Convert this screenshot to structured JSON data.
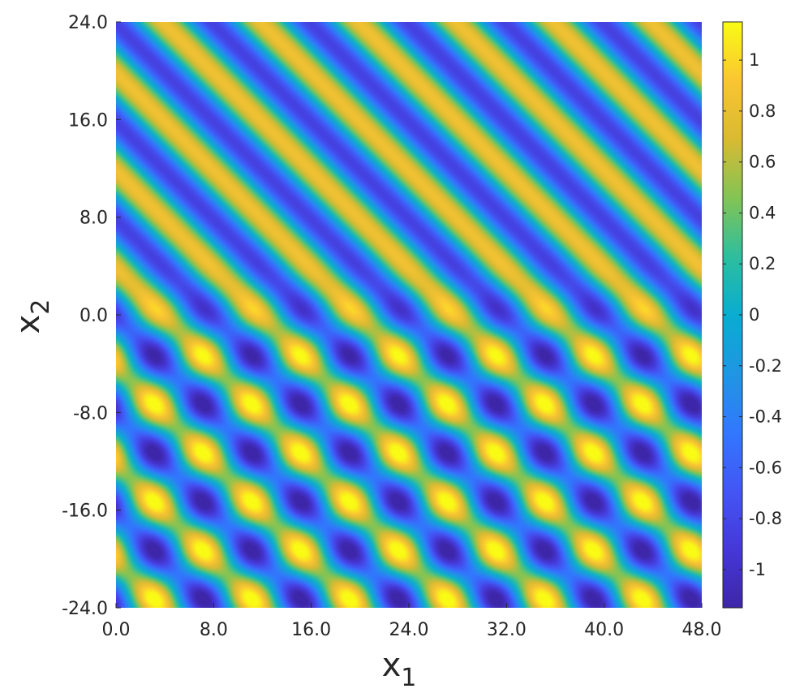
{
  "chart_data": {
    "type": "heatmap",
    "title": "",
    "xlabel": "x",
    "xlabel_subscript": "1",
    "ylabel": "x",
    "ylabel_subscript": "2",
    "xlim": [
      0,
      48
    ],
    "ylim": [
      -24,
      24
    ],
    "xticks": [
      0,
      8,
      16,
      24,
      32,
      40,
      48
    ],
    "xtick_labels": [
      "0.0",
      "8.0",
      "16.0",
      "24.0",
      "32.0",
      "40.0",
      "48.0"
    ],
    "yticks": [
      -24,
      -16,
      -8,
      0,
      8,
      16,
      24
    ],
    "ytick_labels": [
      "-24.0",
      "-16.0",
      "-8.0",
      "0.0",
      "8.0",
      "16.0",
      "24.0"
    ],
    "colorbar": {
      "colormap": "parula",
      "range": [
        -1.15,
        1.15
      ],
      "ticks": [
        -1,
        -0.8,
        -0.6,
        -0.4,
        -0.2,
        0,
        0.2,
        0.4,
        0.6,
        0.8,
        1
      ],
      "tick_labels": [
        "-1",
        "-0.8",
        "-0.6",
        "-0.4",
        "-0.2",
        "0",
        "0.2",
        "0.4",
        "0.6",
        "0.8",
        "1"
      ]
    },
    "field_description": {
      "upper_half": "diagonal plane-wave stripes, value range about -0.9 to 0.8",
      "lower_half": "superposition of two waves producing alternating maxima (~1.1) and minima (~-1.1)",
      "grid": false
    }
  }
}
